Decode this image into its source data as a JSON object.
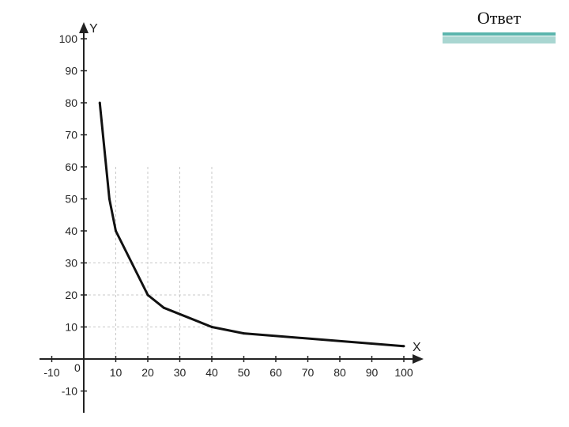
{
  "answer_label": "Ответ",
  "colors": {
    "line": "#111111",
    "axis": "#222222",
    "grid": "#c8c8c8",
    "accent": "#5ab5ad",
    "accent_light": "#a9d6d1"
  },
  "chart_data": {
    "type": "line",
    "title": "",
    "xlabel": "X",
    "ylabel": "Y",
    "origin_label": "0",
    "xlim": [
      -15,
      105
    ],
    "ylim": [
      -15,
      105
    ],
    "x_ticks": [
      -10,
      10,
      20,
      30,
      40,
      50,
      60,
      70,
      80,
      90,
      100
    ],
    "y_ticks": [
      100,
      90,
      80,
      70,
      60,
      50,
      40,
      30,
      20,
      10,
      -10
    ],
    "grid": true,
    "series": [
      {
        "x": [
          5,
          8,
          10,
          20,
          25,
          40,
          50,
          100
        ],
        "y": [
          80,
          50,
          40,
          20,
          16,
          10,
          8,
          4
        ]
      }
    ]
  }
}
